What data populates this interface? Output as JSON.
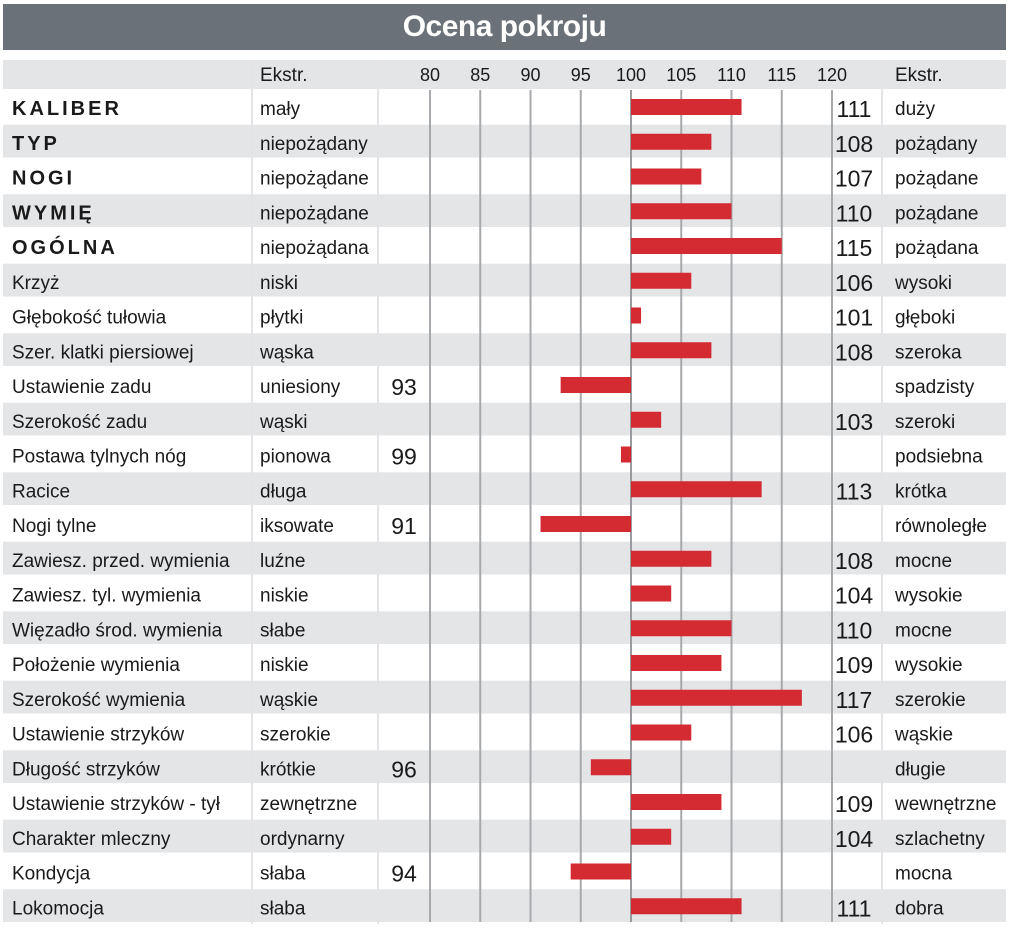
{
  "title": "Ocena pokroju",
  "chart_data": {
    "type": "bar",
    "orientation": "horizontal",
    "baseline": 100,
    "xlim": [
      75,
      123
    ],
    "ticks": [
      80,
      85,
      90,
      95,
      100,
      105,
      110,
      115,
      120
    ],
    "header_left": "Ekstr.",
    "header_right": "Ekstr.",
    "grid": true,
    "bar_color": "#d42a32",
    "rows": [
      {
        "label": "KALIBER",
        "bold": true,
        "left": "mały",
        "right": "duży",
        "value": 111
      },
      {
        "label": "TYP",
        "bold": true,
        "left": "niepożądany",
        "right": "pożądany",
        "value": 108
      },
      {
        "label": "NOGI",
        "bold": true,
        "left": "niepożądane",
        "right": "pożądane",
        "value": 107
      },
      {
        "label": "WYMIĘ",
        "bold": true,
        "left": "niepożądane",
        "right": "pożądane",
        "value": 110
      },
      {
        "label": "OGÓLNA",
        "bold": true,
        "left": "niepożądana",
        "right": "pożądana",
        "value": 115
      },
      {
        "label": "Krzyż",
        "bold": false,
        "left": "niski",
        "right": "wysoki",
        "value": 106
      },
      {
        "label": "Głębokość tułowia",
        "bold": false,
        "left": "płytki",
        "right": "głęboki",
        "value": 101
      },
      {
        "label": "Szer. klatki piersiowej",
        "bold": false,
        "left": "wąska",
        "right": "szeroka",
        "value": 108
      },
      {
        "label": "Ustawienie zadu",
        "bold": false,
        "left": "uniesiony",
        "right": "spadzisty",
        "value": 93
      },
      {
        "label": "Szerokość zadu",
        "bold": false,
        "left": "wąski",
        "right": "szeroki",
        "value": 103
      },
      {
        "label": "Postawa tylnych nóg",
        "bold": false,
        "left": "pionowa",
        "right": "podsiebna",
        "value": 99
      },
      {
        "label": "Racice",
        "bold": false,
        "left": "długa",
        "right": "krótka",
        "value": 113
      },
      {
        "label": "Nogi tylne",
        "bold": false,
        "left": "iksowate",
        "right": "równoległe",
        "value": 91
      },
      {
        "label": "Zawiesz. przed. wymienia",
        "bold": false,
        "left": "luźne",
        "right": "mocne",
        "value": 108
      },
      {
        "label": "Zawiesz. tyl. wymienia",
        "bold": false,
        "left": "niskie",
        "right": "wysokie",
        "value": 104
      },
      {
        "label": "Więzadło środ. wymienia",
        "bold": false,
        "left": "słabe",
        "right": "mocne",
        "value": 110
      },
      {
        "label": "Położenie wymienia",
        "bold": false,
        "left": "niskie",
        "right": "wysokie",
        "value": 109
      },
      {
        "label": "Szerokość wymienia",
        "bold": false,
        "left": "wąskie",
        "right": "szerokie",
        "value": 117
      },
      {
        "label": "Ustawienie strzyków",
        "bold": false,
        "left": "szerokie",
        "right": "wąskie",
        "value": 106
      },
      {
        "label": "Długość strzyków",
        "bold": false,
        "left": "krótkie",
        "right": "długie",
        "value": 96
      },
      {
        "label": "Ustawienie strzyków - tył",
        "bold": false,
        "left": "zewnętrzne",
        "right": "wewnętrzne",
        "value": 109
      },
      {
        "label": "Charakter mleczny",
        "bold": false,
        "left": "ordynarny",
        "right": "szlachetny",
        "value": 104
      },
      {
        "label": "Kondycja",
        "bold": false,
        "left": "słaba",
        "right": "mocna",
        "value": 94
      },
      {
        "label": "Lokomocja",
        "bold": false,
        "left": "słaba",
        "right": "dobra",
        "value": 111
      }
    ]
  }
}
